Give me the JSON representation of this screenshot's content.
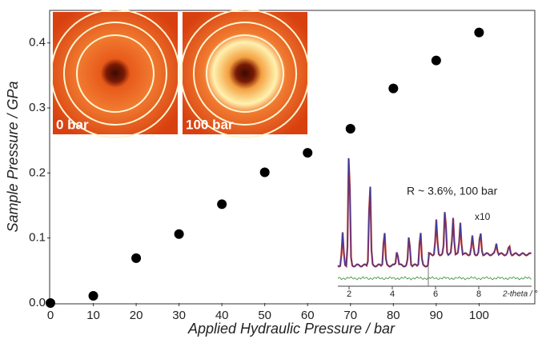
{
  "chart_data": {
    "type": "scatter",
    "x_label": "Applied Hydraulic Pressure / bar",
    "y_label": "Sample Pressure / GPa",
    "x": [
      0,
      10,
      20,
      30,
      40,
      50,
      60,
      70,
      80,
      90,
      100
    ],
    "values": [
      0.0,
      0.011,
      0.069,
      0.106,
      0.152,
      0.201,
      0.231,
      0.268,
      0.33,
      0.373,
      0.416
    ],
    "color": "#000000",
    "xlim": [
      0,
      113
    ],
    "ylim": [
      0,
      0.45
    ],
    "xticks": [
      0,
      10,
      20,
      30,
      40,
      50,
      60,
      70,
      80,
      90,
      100
    ],
    "yticks": [
      {
        "value": 0,
        "label": "0.0"
      },
      0.1,
      0.2,
      0.3,
      0.4
    ],
    "annotations": [
      "0 bar",
      "100 bar"
    ],
    "inset": {
      "annotation": "R ~ 3.6%, 100 bar",
      "scale_label": "x10",
      "x_label": "2-theta / °",
      "xticks": [
        2,
        4,
        6,
        8
      ]
    }
  }
}
